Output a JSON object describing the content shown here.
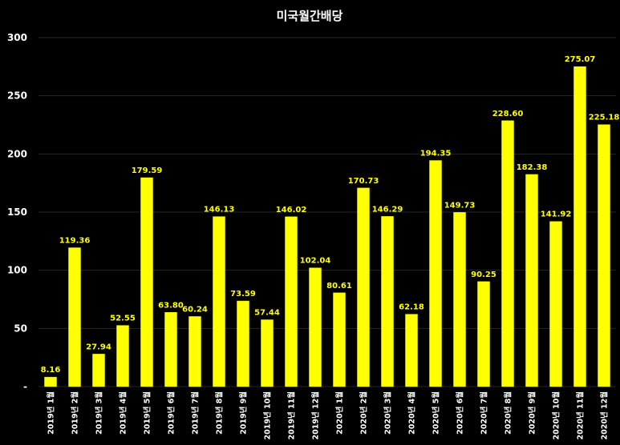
{
  "chart_data": {
    "type": "bar",
    "title": "미국월간배당",
    "xlabel": "",
    "ylabel": "",
    "ylim": [
      0,
      300
    ],
    "yticks": [
      0,
      50,
      100,
      150,
      200,
      250,
      300
    ],
    "ytick_labels": [
      "-",
      "50",
      "100",
      "150",
      "200",
      "250",
      "300"
    ],
    "grid": true,
    "legend": "none",
    "categories": [
      "2019년 1월",
      "2019년 2월",
      "2019년 3월",
      "2019년 4월",
      "2019년 5월",
      "2019년 6월",
      "2019년 7월",
      "2019년 8월",
      "2019년 9월",
      "2019년 10월",
      "2019년 11월",
      "2019년 12월",
      "2020년 1월",
      "2020년 2월",
      "2020년 3월",
      "2020년 4월",
      "2020년 5월",
      "2020년 6월",
      "2020년 7월",
      "2020년 8월",
      "2020년 9월",
      "2020년 10월",
      "2020년 11월",
      "2020년 12월"
    ],
    "values": [
      8.16,
      119.36,
      27.94,
      52.55,
      179.59,
      63.8,
      60.24,
      146.13,
      73.59,
      57.44,
      146.02,
      102.04,
      80.61,
      170.73,
      146.29,
      62.18,
      194.35,
      149.73,
      90.25,
      228.6,
      182.38,
      141.92,
      275.07,
      225.18
    ],
    "value_labels": [
      "8.16",
      "119.36",
      "27.94",
      "52.55",
      "179.59",
      "63.80",
      "60.24",
      "146.13",
      "73.59",
      "57.44",
      "146.02",
      "102.04",
      "80.61",
      "170.73",
      "146.29",
      "62.18",
      "194.35",
      "149.73",
      "90.25",
      "228.60",
      "182.38",
      "141.92",
      "275.07",
      "225.18"
    ]
  },
  "colors": {
    "background": "#000000",
    "bar": "#FFFF00",
    "bar_stroke": "#F2F200",
    "value_label": "#FFFF00",
    "text": "#FFFFFF",
    "grid": "#262626"
  }
}
